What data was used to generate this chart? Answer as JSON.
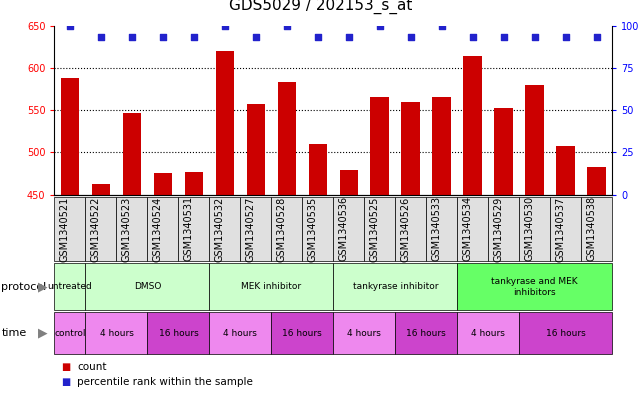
{
  "title": "GDS5029 / 202153_s_at",
  "samples": [
    "GSM1340521",
    "GSM1340522",
    "GSM1340523",
    "GSM1340524",
    "GSM1340531",
    "GSM1340532",
    "GSM1340527",
    "GSM1340528",
    "GSM1340535",
    "GSM1340536",
    "GSM1340525",
    "GSM1340526",
    "GSM1340533",
    "GSM1340534",
    "GSM1340529",
    "GSM1340530",
    "GSM1340537",
    "GSM1340538"
  ],
  "counts_fixed": [
    588,
    463,
    547,
    475,
    477,
    620,
    557,
    583,
    510,
    479,
    565,
    560,
    565,
    614,
    552,
    580,
    508,
    483
  ],
  "percentile_ranks": [
    100,
    93,
    93,
    93,
    93,
    100,
    93,
    100,
    93,
    93,
    100,
    93,
    100,
    93,
    93,
    93,
    93,
    93
  ],
  "ylim_left": [
    450,
    650
  ],
  "ylim_right": [
    0,
    100
  ],
  "yticks_left": [
    450,
    500,
    550,
    600,
    650
  ],
  "yticks_right": [
    0,
    25,
    50,
    75,
    100
  ],
  "bar_color": "#cc0000",
  "dot_color": "#2222cc",
  "protocol_groups": [
    {
      "label": "untreated",
      "start": 0,
      "end": 1,
      "color": "#ccffcc"
    },
    {
      "label": "DMSO",
      "start": 1,
      "end": 5,
      "color": "#ccffcc"
    },
    {
      "label": "MEK inhibitor",
      "start": 5,
      "end": 9,
      "color": "#ccffcc"
    },
    {
      "label": "tankyrase inhibitor",
      "start": 9,
      "end": 13,
      "color": "#ccffcc"
    },
    {
      "label": "tankyrase and MEK\ninhibitors",
      "start": 13,
      "end": 18,
      "color": "#66ff66"
    }
  ],
  "time_groups": [
    {
      "label": "control",
      "start": 0,
      "end": 1,
      "color": "#ee88ee"
    },
    {
      "label": "4 hours",
      "start": 1,
      "end": 3,
      "color": "#ee88ee"
    },
    {
      "label": "16 hours",
      "start": 3,
      "end": 5,
      "color": "#cc44cc"
    },
    {
      "label": "4 hours",
      "start": 5,
      "end": 7,
      "color": "#ee88ee"
    },
    {
      "label": "16 hours",
      "start": 7,
      "end": 9,
      "color": "#cc44cc"
    },
    {
      "label": "4 hours",
      "start": 9,
      "end": 11,
      "color": "#ee88ee"
    },
    {
      "label": "16 hours",
      "start": 11,
      "end": 13,
      "color": "#cc44cc"
    },
    {
      "label": "4 hours",
      "start": 13,
      "end": 15,
      "color": "#ee88ee"
    },
    {
      "label": "16 hours",
      "start": 15,
      "end": 18,
      "color": "#cc44cc"
    }
  ],
  "xtick_bg": "#e0e0e0",
  "title_fontsize": 11,
  "tick_fontsize": 7,
  "label_fontsize": 8,
  "row_label_fontsize": 8,
  "legend_fontsize": 7.5
}
